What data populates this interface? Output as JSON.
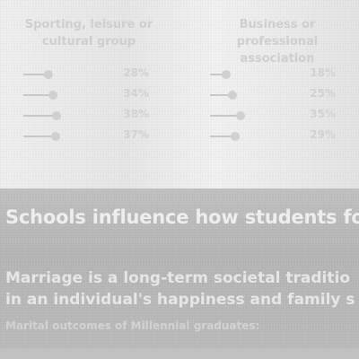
{
  "groups": [
    {
      "title": "Sporting, leisure or cultural group",
      "rows": [
        {
          "value": "28%",
          "level": 0.28
        },
        {
          "value": "34%",
          "level": 0.34
        },
        {
          "value": "38%",
          "level": 0.38
        },
        {
          "value": "37%",
          "level": 0.37
        }
      ]
    },
    {
      "title": "Business or professional association",
      "rows": [
        {
          "value": "18%",
          "level": 0.18
        },
        {
          "value": "25%",
          "level": 0.25
        },
        {
          "value": "35%",
          "level": 0.35
        },
        {
          "value": "29%",
          "level": 0.29
        }
      ]
    }
  ],
  "headline": "Schools influence how students for",
  "paragraph": {
    "line1": "Marriage is a long-term societal traditio",
    "line2": "in an individual's happiness and family s"
  },
  "caption": "Marital outcomes of Millennial graduates:"
}
